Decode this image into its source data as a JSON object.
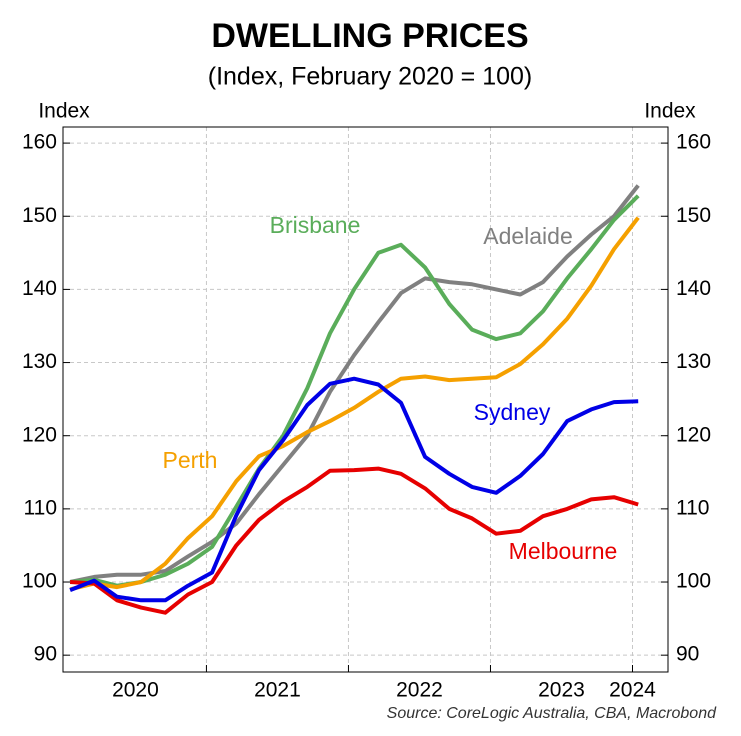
{
  "chart_data": {
    "type": "line",
    "title": "DWELLING PRICES",
    "subtitle": "(Index, February 2020 = 100)",
    "y_label": "Index",
    "y2_label": "Index",
    "source": "Source: CoreLogic Australia, CBA, Macrobond",
    "x": [
      2020.04,
      2020.21,
      2020.37,
      2020.54,
      2020.71,
      2020.87,
      2021.04,
      2021.21,
      2021.37,
      2021.54,
      2021.71,
      2021.87,
      2022.04,
      2022.21,
      2022.37,
      2022.54,
      2022.71,
      2022.87,
      2023.04,
      2023.21,
      2023.37,
      2023.54,
      2023.71,
      2023.87,
      2024.04
    ],
    "xlim": [
      2019.99,
      2024.25
    ],
    "xticks": [
      2021,
      2022,
      2023,
      2024
    ],
    "xlabels": [
      {
        "value": 2020.5,
        "label": "2020"
      },
      {
        "value": 2021.5,
        "label": "2021"
      },
      {
        "value": 2022.5,
        "label": "2022"
      },
      {
        "value": 2023.5,
        "label": "2023"
      },
      {
        "value": 2024,
        "label": "2024"
      }
    ],
    "ylim": [
      87.7,
      162.2
    ],
    "yticks": [
      90,
      100,
      110,
      120,
      130,
      140,
      150,
      160
    ],
    "y2lim": [
      87.7,
      162.2
    ],
    "y2ticks": [
      90,
      100,
      110,
      120,
      130,
      140,
      150,
      160
    ],
    "grid": true,
    "series": [
      {
        "name": "Adelaide",
        "color": "#808080",
        "values": [
          100,
          100.7,
          101,
          101,
          101.5,
          103.5,
          105.5,
          108,
          112,
          116,
          120,
          126,
          131,
          135.5,
          139.5,
          141.5,
          141,
          140.7,
          140,
          139.3,
          141,
          144.5,
          147.5,
          150,
          154.2
        ]
      },
      {
        "name": "Brisbane",
        "color": "#5aad5a",
        "values": [
          100,
          100.3,
          99.5,
          100,
          101,
          102.5,
          104.8,
          110.3,
          115.5,
          120,
          126.5,
          134,
          140,
          145,
          146.1,
          143,
          138,
          134.5,
          133.2,
          134,
          137,
          141.5,
          145.5,
          149.5,
          152.8
        ]
      },
      {
        "name": "Perth",
        "color": "#f5a000",
        "values": [
          99,
          99.8,
          99.3,
          100,
          102.5,
          106,
          109,
          113.8,
          117.2,
          118.6,
          120.5,
          122,
          123.8,
          126,
          127.8,
          128.1,
          127.6,
          127.8,
          128,
          129.8,
          132.5,
          136,
          140.5,
          145.5,
          149.8
        ]
      },
      {
        "name": "Melbourne",
        "color": "#e60000",
        "values": [
          100,
          99.8,
          97.5,
          96.5,
          95.8,
          98.3,
          100,
          105,
          108.5,
          111,
          113,
          115.2,
          115.3,
          115.5,
          114.8,
          112.8,
          110,
          108.7,
          106.6,
          107,
          109,
          110,
          111.3,
          111.6,
          110.6
        ]
      },
      {
        "name": "Sydney",
        "color": "#0000e6",
        "values": [
          98.9,
          100.2,
          98,
          97.5,
          97.5,
          99.5,
          101.3,
          109.1,
          115.3,
          119.4,
          124.2,
          127.1,
          127.8,
          127,
          124.5,
          117.1,
          114.8,
          113,
          112.2,
          114.5,
          117.5,
          122,
          123.6,
          124.6,
          124.7
        ]
      }
    ]
  }
}
